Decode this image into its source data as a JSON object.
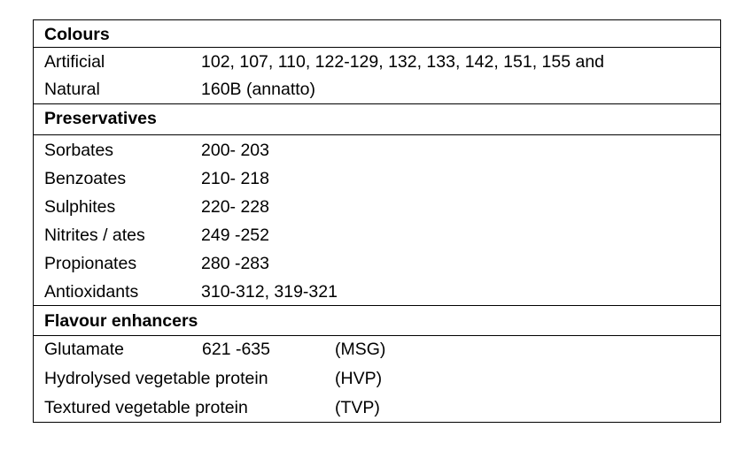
{
  "sections": [
    {
      "title": "Colours",
      "rows": [
        [
          "Artificial",
          "102, 107, 110, 122-129, 132, 133, 142, 151, 155 and"
        ],
        [
          "Natural",
          "160B (annatto)"
        ]
      ]
    },
    {
      "title": "Preservatives",
      "rows": [
        [
          "Sorbates",
          "200- 203"
        ],
        [
          "Benzoates",
          "210- 218"
        ],
        [
          "Sulphites",
          "220- 228"
        ],
        [
          "Nitrites / ates",
          "249 -252"
        ],
        [
          "Propionates",
          "280 -283"
        ],
        [
          "Antioxidants",
          "310-312, 319-321"
        ]
      ]
    },
    {
      "title": "Flavour enhancers",
      "rows": [
        [
          "Glutamate",
          "621 -635",
          "(MSG)"
        ],
        [
          "Hydrolysed vegetable protein",
          "(HVP)"
        ],
        [
          "Textured vegetable protein",
          "(TVP)"
        ]
      ]
    }
  ]
}
